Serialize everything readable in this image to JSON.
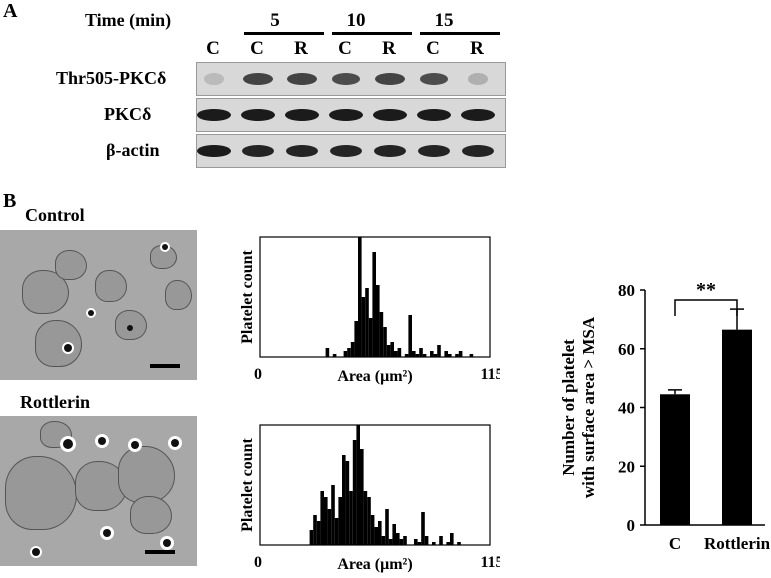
{
  "panel_a": {
    "letter": "A",
    "time_label": "Time (min)",
    "time_groups": [
      "5",
      "10",
      "15"
    ],
    "lanes": [
      "C",
      "C",
      "R",
      "C",
      "R",
      "C",
      "R"
    ],
    "rows": [
      {
        "label": "Thr505-PKCδ",
        "intensities": [
          0.15,
          0.75,
          0.75,
          0.7,
          0.75,
          0.7,
          0.2
        ]
      },
      {
        "label": "PKCδ",
        "intensities": [
          0.95,
          0.95,
          0.95,
          0.95,
          0.95,
          0.95,
          0.95
        ]
      },
      {
        "label": "β-actin",
        "intensities": [
          0.95,
          0.9,
          0.9,
          0.9,
          0.9,
          0.9,
          0.9
        ]
      }
    ]
  },
  "panel_b": {
    "letter": "B",
    "images": [
      {
        "label": "Control"
      },
      {
        "label": "Rottlerin"
      }
    ]
  },
  "chart_data": [
    {
      "type": "bar",
      "title": "",
      "xlabel": "Area (μm²)",
      "ylabel": "Platelet count",
      "xtick_labels": [
        "0",
        "115"
      ],
      "xlim": [
        0,
        115
      ],
      "bin_width": 1.8,
      "bins_start": 31,
      "values": [
        0,
        3,
        0,
        1,
        0,
        0,
        2,
        3,
        5,
        12,
        40,
        20,
        23,
        13,
        35,
        24,
        15,
        10,
        4,
        5,
        2,
        3,
        0,
        1,
        14,
        2,
        1,
        3,
        1,
        0,
        2,
        1,
        4,
        0,
        2,
        1,
        0,
        1,
        2,
        0,
        0,
        1
      ],
      "ylim": [
        0,
        40
      ]
    },
    {
      "type": "bar",
      "title": "",
      "xlabel": "Area (μm²)",
      "ylabel": "Platelet count",
      "xtick_labels": [
        "0",
        "115"
      ],
      "xlim": [
        0,
        115
      ],
      "bin_width": 1.8,
      "bins_start": 23,
      "values": [
        0,
        5,
        10,
        8,
        18,
        16,
        12,
        20,
        9,
        16,
        30,
        28,
        18,
        35,
        40,
        32,
        18,
        16,
        10,
        6,
        8,
        3,
        12,
        2,
        7,
        4,
        2,
        3,
        0,
        0,
        2,
        1,
        11,
        3,
        0,
        1,
        0,
        3,
        0,
        1,
        4,
        0,
        1
      ],
      "ylim": [
        0,
        40
      ]
    },
    {
      "type": "bar",
      "title": "",
      "xlabel": "",
      "ylabel": "Number of platelet with surface area > MSA",
      "ylabel_lines": [
        "Number of platelet",
        "with surface area > MSA"
      ],
      "categories": [
        "C",
        "Rottlerin"
      ],
      "values": [
        44.5,
        66.5
      ],
      "errors": [
        1.5,
        7
      ],
      "ylim": [
        0,
        80
      ],
      "yticks": [
        0,
        20,
        40,
        60,
        80
      ],
      "significance": "**"
    }
  ]
}
